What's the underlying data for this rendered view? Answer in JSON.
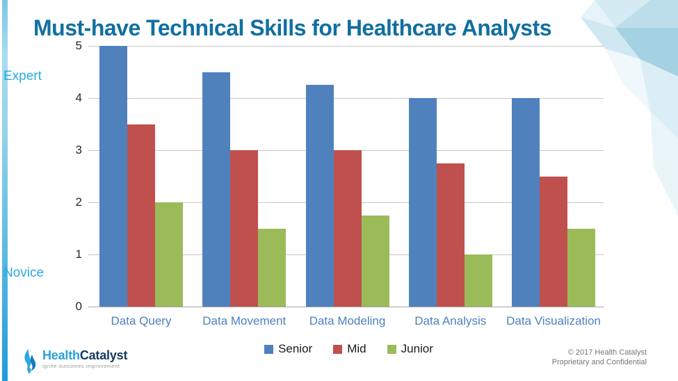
{
  "slide": {
    "title": "Must-have Technical Skills for Healthcare Analysts"
  },
  "chart_data": {
    "type": "bar",
    "title": "Must-have Technical Skills for Healthcare Analysts",
    "categories": [
      "Data Query",
      "Data Movement",
      "Data Modeling",
      "Data Analysis",
      "Data Visualization"
    ],
    "series": [
      {
        "name": "Senior",
        "color": "#4f81bd",
        "values": [
          5,
          4.5,
          4.25,
          4,
          4
        ]
      },
      {
        "name": "Mid",
        "color": "#c0504d",
        "values": [
          3.5,
          3,
          3,
          2.75,
          2.5
        ]
      },
      {
        "name": "Junior",
        "color": "#9bbb59",
        "values": [
          2,
          1.5,
          1.75,
          1,
          1.5
        ]
      }
    ],
    "ylim": [
      0,
      5
    ],
    "y_ticks": [
      5,
      4,
      3,
      2,
      1,
      0
    ],
    "y_axis_annotations": [
      {
        "label": "Expert",
        "position": "top"
      },
      {
        "label": "Novice",
        "position": "bottom"
      }
    ],
    "grid": true,
    "legend_position": "bottom",
    "colors": {
      "title": "#106fa1",
      "category_label": "#4e81bd",
      "annotation": "#29abe2",
      "gridline": "#c6c6c6",
      "axis_line": "#a6a6a6"
    }
  },
  "footer": {
    "logo_health": "Health",
    "logo_catalyst": "Catalyst",
    "logo_tagline": "ignite outcomes improvement",
    "copyright_line1": "© 2017 Health Catalyst",
    "copyright_line2": "Proprietary and Confidential"
  }
}
